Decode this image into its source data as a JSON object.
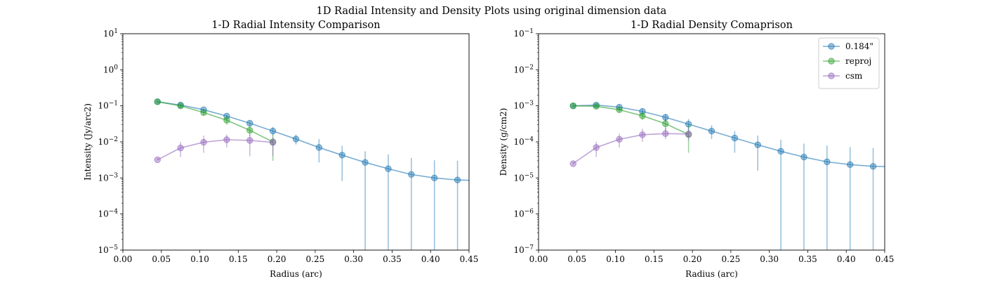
{
  "suptitle": "1D Radial Intensity and Density Plots using original dimension data",
  "chart_data": [
    {
      "type": "line",
      "title": "1-D Radial Intensity Comparison",
      "xlabel": "Radius (arc)",
      "ylabel": "Intensity (Jy/arc2)",
      "xlim": [
        0.0,
        0.45
      ],
      "ylim": [
        1e-05,
        10
      ],
      "yscale": "log",
      "grid": false,
      "xticks": [
        "0.00",
        "0.05",
        "0.10",
        "0.15",
        "0.20",
        "0.25",
        "0.30",
        "0.35",
        "0.40",
        "0.45"
      ],
      "yticks": [
        {
          "base": "10",
          "exp": "−5",
          "value": 1e-05
        },
        {
          "base": "10",
          "exp": "−4",
          "value": 0.0001
        },
        {
          "base": "10",
          "exp": "−3",
          "value": 0.001
        },
        {
          "base": "10",
          "exp": "−2",
          "value": 0.01
        },
        {
          "base": "10",
          "exp": "−1",
          "value": 0.1
        },
        {
          "base": "10",
          "exp": "0",
          "value": 1
        },
        {
          "base": "10",
          "exp": "1",
          "value": 10
        }
      ],
      "series": [
        {
          "name": "0.184\"",
          "color": "#1f77b4",
          "x": [
            0.045,
            0.075,
            0.105,
            0.135,
            0.165,
            0.195,
            0.225,
            0.255,
            0.285,
            0.315,
            0.345,
            0.375,
            0.405,
            0.435,
            0.45
          ],
          "y": [
            0.13,
            0.105,
            0.078,
            0.052,
            0.033,
            0.02,
            0.012,
            0.007,
            0.0043,
            0.0027,
            0.0018,
            0.00125,
            0.001,
            0.00088,
            0.00086
          ],
          "err_low": [
            0.12,
            0.097,
            0.072,
            0.047,
            0.029,
            0.015,
            0.0085,
            0.0027,
            0.00082,
            1e-05,
            1e-05,
            1e-05,
            1e-05,
            1e-05,
            null
          ],
          "err_high": [
            0.14,
            0.112,
            0.084,
            0.058,
            0.037,
            0.026,
            0.016,
            0.012,
            0.0078,
            0.0055,
            0.0045,
            0.0036,
            0.0031,
            0.003,
            null
          ]
        },
        {
          "name": "reproj",
          "color": "#2ca02c",
          "x": [
            0.045,
            0.075,
            0.105,
            0.135,
            0.165,
            0.195
          ],
          "y": [
            0.13,
            0.1,
            0.065,
            0.04,
            0.021,
            0.01
          ],
          "err_low": [
            0.12,
            0.092,
            0.055,
            0.03,
            0.014,
            0.003
          ],
          "err_high": [
            0.14,
            0.11,
            0.075,
            0.052,
            0.03,
            0.016
          ]
        },
        {
          "name": "csm",
          "color": "#9467bd",
          "x": [
            0.045,
            0.075,
            0.105,
            0.135,
            0.165,
            0.195
          ],
          "y": [
            0.0032,
            0.0068,
            0.0098,
            0.0115,
            0.011,
            0.0097
          ],
          "err_low": [
            0.003,
            0.0038,
            0.005,
            0.007,
            0.004,
            0.004
          ],
          "err_high": [
            0.0035,
            0.01,
            0.015,
            0.016,
            0.016,
            0.014
          ]
        }
      ]
    },
    {
      "type": "line",
      "title": "1-D Radial Density Comaprison",
      "xlabel": "Radius (arc)",
      "ylabel": "Density (g/cm2)",
      "xlim": [
        0.0,
        0.45
      ],
      "ylim": [
        1e-07,
        0.1
      ],
      "yscale": "log",
      "grid": false,
      "legend": "top-right",
      "xticks": [
        "0.00",
        "0.05",
        "0.10",
        "0.15",
        "0.20",
        "0.25",
        "0.30",
        "0.35",
        "0.40",
        "0.45"
      ],
      "yticks": [
        {
          "base": "10",
          "exp": "−7",
          "value": 1e-07
        },
        {
          "base": "10",
          "exp": "−6",
          "value": 1e-06
        },
        {
          "base": "10",
          "exp": "−5",
          "value": 1e-05
        },
        {
          "base": "10",
          "exp": "−4",
          "value": 0.0001
        },
        {
          "base": "10",
          "exp": "−3",
          "value": 0.001
        },
        {
          "base": "10",
          "exp": "−2",
          "value": 0.01
        },
        {
          "base": "10",
          "exp": "−1",
          "value": 0.1
        }
      ],
      "series": [
        {
          "name": "0.184\"",
          "color": "#1f77b4",
          "x": [
            0.045,
            0.075,
            0.105,
            0.135,
            0.165,
            0.195,
            0.225,
            0.255,
            0.285,
            0.315,
            0.345,
            0.375,
            0.405,
            0.435,
            0.45
          ],
          "y": [
            0.001,
            0.00105,
            0.00092,
            0.0007,
            0.00048,
            0.00031,
            0.0002,
            0.000128,
            8.3e-05,
            5.5e-05,
            3.8e-05,
            2.8e-05,
            2.35e-05,
            2.1e-05,
            2.08e-05
          ],
          "err_low": [
            0.00092,
            0.00095,
            0.0008,
            0.00058,
            0.00037,
            0.00019,
            0.00012,
            5e-05,
            1.6e-05,
            1e-07,
            1e-07,
            1e-07,
            1e-07,
            1e-07,
            null
          ],
          "err_high": [
            0.0011,
            0.00115,
            0.00105,
            0.00085,
            0.0006,
            0.00043,
            0.00029,
            0.0002,
            0.00015,
            0.000115,
            9e-05,
            8e-05,
            7.2e-05,
            6.8e-05,
            null
          ]
        },
        {
          "name": "reproj",
          "color": "#2ca02c",
          "x": [
            0.045,
            0.075,
            0.105,
            0.135,
            0.165,
            0.195
          ],
          "y": [
            0.001,
            0.00097,
            0.00078,
            0.00053,
            0.00032,
            0.00016
          ],
          "err_low": [
            0.00092,
            0.00088,
            0.00066,
            0.0004,
            0.0002,
            5e-05
          ],
          "err_high": [
            0.0011,
            0.00106,
            0.00092,
            0.00068,
            0.00045,
            0.0003
          ]
        },
        {
          "name": "csm",
          "color": "#9467bd",
          "x": [
            0.045,
            0.075,
            0.105,
            0.135,
            0.165,
            0.195
          ],
          "y": [
            2.5e-05,
            7e-05,
            0.000118,
            0.000158,
            0.00017,
            0.000165
          ],
          "err_low": [
            2.3e-05,
            3.8e-05,
            7e-05,
            0.0001,
            0.00012,
            0.00011
          ],
          "err_high": [
            2.8e-05,
            0.0001,
            0.00017,
            0.00023,
            0.00024,
            0.00023
          ]
        }
      ]
    }
  ]
}
